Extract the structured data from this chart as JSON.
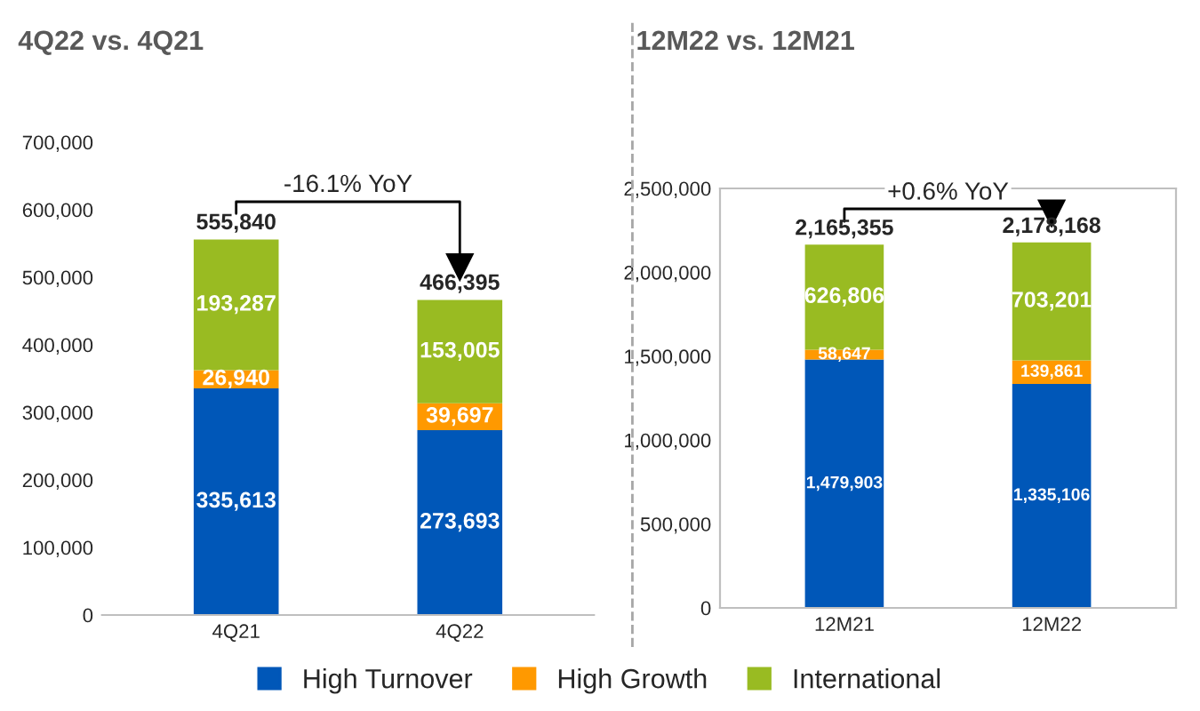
{
  "chart_data": [
    {
      "type": "bar",
      "title": "4Q22 vs. 4Q21",
      "stacked": true,
      "categories": [
        "4Q21",
        "4Q22"
      ],
      "series": [
        {
          "name": "High Turnover",
          "color": "#0057b8",
          "values": [
            335613,
            273693
          ],
          "value_labels": [
            "335,613",
            "273,693"
          ]
        },
        {
          "name": "High Growth",
          "color": "#ff9900",
          "values": [
            26940,
            39697
          ],
          "value_labels": [
            "26,940",
            "39,697"
          ]
        },
        {
          "name": "International",
          "color": "#99bb22",
          "values": [
            193287,
            153005
          ],
          "value_labels": [
            "193,287",
            "153,005"
          ]
        }
      ],
      "totals": [
        "555,840",
        "466,395"
      ],
      "annotations": [
        "-16.1% YoY"
      ],
      "ylim": [
        0,
        700000
      ],
      "yticks": [
        0,
        {
          "value": 100000,
          "label": "100,000"
        },
        {
          "value": 200000,
          "label": "200,000"
        },
        {
          "value": 300000,
          "label": "300,000"
        },
        {
          "value": 400000,
          "label": "400,000"
        },
        {
          "value": 500000,
          "label": "500,000"
        },
        {
          "value": 600000,
          "label": "600,000"
        },
        {
          "value": 700000,
          "label": "700,000"
        }
      ],
      "grid": false,
      "legend": "bottom"
    },
    {
      "type": "bar",
      "title": "12M22 vs. 12M21",
      "stacked": true,
      "categories": [
        "12M21",
        "12M22"
      ],
      "series": [
        {
          "name": "High Turnover",
          "color": "#0057b8",
          "values": [
            1479903,
            1335106
          ],
          "value_labels": [
            "1,479,903",
            "1,335,106"
          ]
        },
        {
          "name": "High Growth",
          "color": "#ff9900",
          "values": [
            58647,
            139861
          ],
          "value_labels": [
            "58,647",
            "139,861"
          ]
        },
        {
          "name": "International",
          "color": "#99bb22",
          "values": [
            626806,
            703201
          ],
          "value_labels": [
            "626,806",
            "703,201"
          ]
        }
      ],
      "totals": [
        "2,165,355",
        "2,178,168"
      ],
      "annotations": [
        "+0.6% YoY"
      ],
      "ylim": [
        0,
        2500000
      ],
      "yticks": [
        0,
        {
          "value": 500000,
          "label": "500,000"
        },
        {
          "value": 1000000,
          "label": "1,000,000"
        },
        {
          "value": 1500000,
          "label": "1,500,000"
        },
        {
          "value": 2000000,
          "label": "2,000,000"
        },
        {
          "value": 2500000,
          "label": "2,500,000"
        }
      ],
      "grid": false
    }
  ]
}
